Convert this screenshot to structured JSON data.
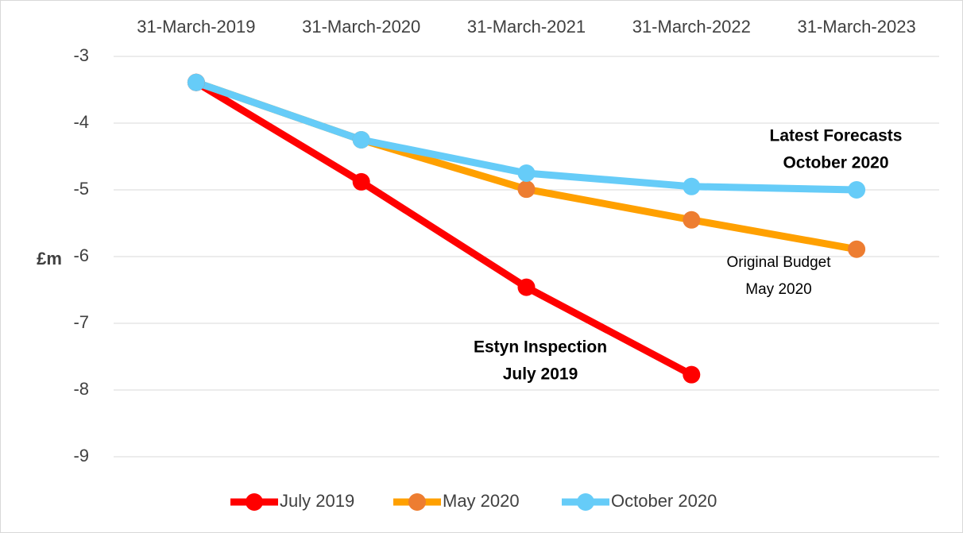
{
  "chart_data": {
    "type": "line",
    "categories": [
      "31-March-2019",
      "31-March-2020",
      "31-March-2021",
      "31-March-2022",
      "31-March-2023"
    ],
    "series": [
      {
        "name": "July 2019",
        "color": "#ff0000",
        "marker_color": "#ff0000",
        "values": [
          -3.39,
          -4.88,
          -6.46,
          -7.77,
          null
        ]
      },
      {
        "name": "May 2020",
        "color": "#ffa000",
        "marker_color": "#ed7d31",
        "values": [
          -3.39,
          -4.25,
          -4.99,
          -5.45,
          -5.89
        ]
      },
      {
        "name": "October 2020",
        "color": "#66ccf8",
        "marker_color": "#66ccf8",
        "values": [
          -3.39,
          -4.25,
          -4.75,
          -4.95,
          -5.0
        ]
      }
    ],
    "ylabel": "£m",
    "ylim": [
      -9,
      -3
    ],
    "yticks": [
      -3,
      -4,
      -5,
      -6,
      -7,
      -8,
      -9
    ],
    "grid": true,
    "legend": "bottom",
    "annotations": [
      {
        "lines": [
          "Latest Forecasts",
          "October 2020"
        ],
        "bold": true
      },
      {
        "lines": [
          "Original Budget",
          "May 2020"
        ],
        "bold": false
      },
      {
        "lines": [
          "Estyn Inspection",
          "July 2019"
        ],
        "bold": true
      }
    ]
  }
}
